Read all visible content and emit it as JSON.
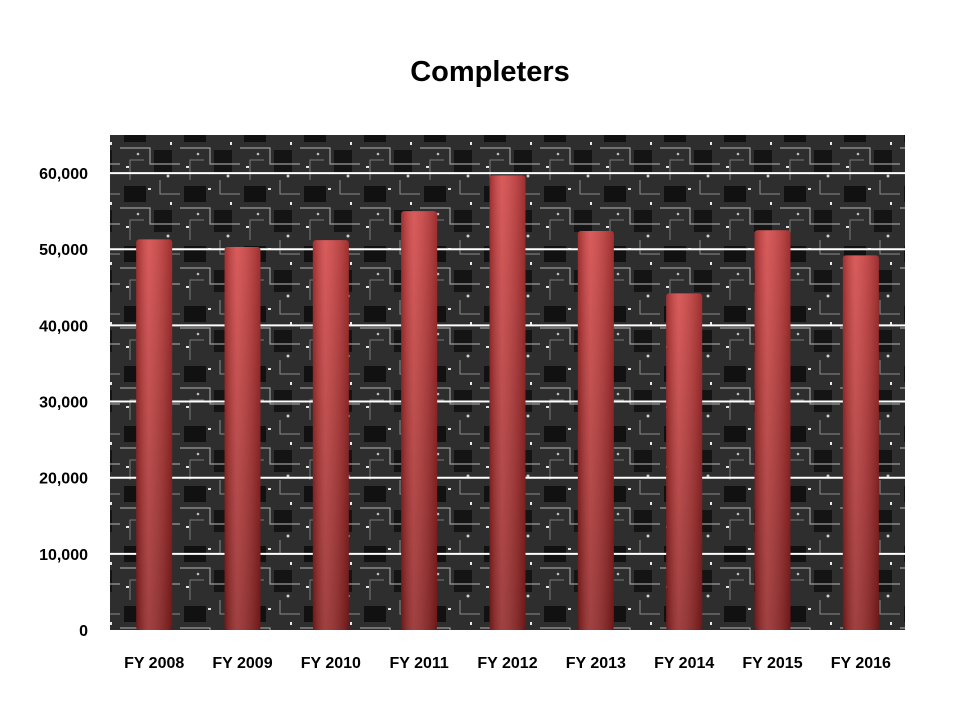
{
  "chart_data": {
    "type": "bar",
    "title": "Completers",
    "categories": [
      "FY 2008",
      "FY 2009",
      "FY 2010",
      "FY 2011",
      "FY 2012",
      "FY 2013",
      "FY 2014",
      "FY 2015",
      "FY 2016"
    ],
    "values": [
      51300,
      50300,
      51200,
      55000,
      59700,
      52400,
      44200,
      52500,
      49200
    ],
    "ylim": [
      0,
      65000
    ],
    "yticks": [
      0,
      10000,
      20000,
      30000,
      40000,
      50000,
      60000
    ],
    "ytick_labels": [
      "0",
      "10,000",
      "20,000",
      "30,000",
      "40,000",
      "50,000",
      "60,000"
    ],
    "grid": true,
    "legend": "none",
    "colors": {
      "bar": "#d23f3f",
      "bar_dark": "#8f1f1f",
      "gridline": "#ffffff",
      "plot_background": "#2b2b2b"
    }
  }
}
